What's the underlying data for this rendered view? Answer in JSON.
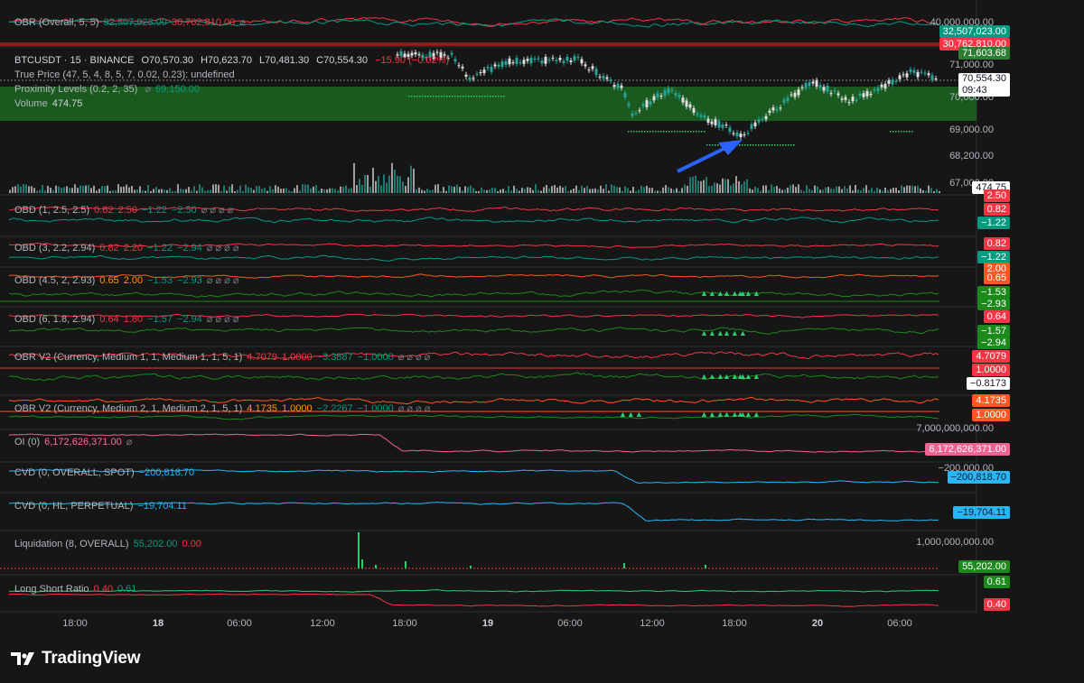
{
  "main": {
    "symbol_line": "BTCUSDT · 15 · BINANCE",
    "open": "O70,570.30",
    "high": "H70,623.70",
    "low": "L70,481.30",
    "close": "C70,554.30",
    "change": "−15.90 (−0.02%)",
    "true_price": "True Price (47, 5, 4, 8, 5, 7, 0.02, 0.23): undefined",
    "prox_label": "Proximity Levels (0.2, 2, 35)",
    "prox_value": "69,150.00",
    "volume_label": "Volume",
    "volume_value": "474.75",
    "last_price": "70,554.30",
    "countdown": "09:43",
    "upper_level_tag": "71,603.68",
    "axis": [
      "71,000.00",
      "70,000.00",
      "69,000.00",
      "68,200.00",
      "67,000.00"
    ]
  },
  "panes": {
    "obr_overall": {
      "label": "OBR (Overall, 5, 5)",
      "v1": "32,507,023.00",
      "v2": "30,762,810.00",
      "opts": "⌀",
      "axis": "40,000,000.00",
      "tag_up": "32,507,023.00",
      "tag_dn": "30,762,810.00"
    },
    "obd1": {
      "label": "OBD (1, 2.5, 2.5)",
      "v1": "0.82",
      "v2": "2.50",
      "v3": "−1.22",
      "v4": "−2.50",
      "opts": "⌀ ⌀ ⌀ ⌀",
      "tag_a": "2.50",
      "tag_r": "0.82",
      "tag_g": "−1.22"
    },
    "obd2": {
      "label": "OBD (3, 2.2, 2.94)",
      "v1": "0.82",
      "v2": "2.20",
      "v3": "−1.22",
      "v4": "−2.94",
      "opts": "⌀ ⌀ ⌀ ⌀",
      "tag_r": "0.82",
      "tag_g": "−1.22"
    },
    "obd3": {
      "label": "OBD (4.5, 2, 2.93)",
      "v1": "0.65",
      "v2": "2.00",
      "v3": "−1.53",
      "v4": "−2.93",
      "opts": "⌀ ⌀ ⌀ ⌀",
      "tag_a": "2.00",
      "tag_r": "0.65",
      "tag_g": "−1.53",
      "tag_b": "−2.93"
    },
    "obd4": {
      "label": "OBD (6, 1.8, 2.94)",
      "v1": "0.64",
      "v2": "1.80",
      "v3": "−1.57",
      "v4": "−2.94",
      "opts": "⌀ ⌀ ⌀ ⌀",
      "tag_r": "0.64",
      "tag_g": "−1.57",
      "tag_b": "−2.94"
    },
    "obr_v2a": {
      "label": "OBR V2 (Currency, Medium 1, 1, Medium 1, 1, 5, 1)",
      "v1": "4.7079",
      "v2": "1.0000",
      "v3": "−3.3887",
      "v4": "−1.0000",
      "opts": "⌀ ⌀ ⌀ ⌀",
      "tag_r": "4.7079",
      "tag_r2": "1.0000",
      "tag_w": "−0.8173"
    },
    "obr_v2b": {
      "label": "OBR V2 (Currency, Medium 2, 1, Medium 2, 1, 5, 1)",
      "v1": "4.1735",
      "v2": "1.0000",
      "v3": "−2.2267",
      "v4": "−1.0000",
      "opts": "⌀ ⌀ ⌀ ⌀",
      "tag_r": "4.1735",
      "tag_r2": "1.0000"
    },
    "oi": {
      "label": "OI (0)",
      "v1": "6,172,626,371.00",
      "opts": "⌀",
      "axis": "7,000,000,000.00",
      "tag": "6,172,626,371.00"
    },
    "cvd_spot": {
      "label": "CVD (0, OVERALL, SPOT)",
      "v1": "−200,818.70",
      "axis": "−200,000.00",
      "tag": "−200,818.70"
    },
    "cvd_perp": {
      "label": "CVD (0, HL, PERPETUAL)",
      "v1": "−19,704.11",
      "tag": "−19,704.11"
    },
    "liq": {
      "label": "Liquidation (8, OVERALL)",
      "v1": "55,202.00",
      "v2": "0.00",
      "axis": "1,000,000,000.00",
      "tag": "55,202.00"
    },
    "lsr": {
      "label": "Long Short Ratio",
      "v1": "0.40",
      "v2": "0.61",
      "tag_g": "0.61",
      "tag_r": "0.40"
    }
  },
  "time_axis": [
    "18:00",
    "18",
    "06:00",
    "12:00",
    "18:00",
    "19",
    "06:00",
    "12:00",
    "18:00",
    "20",
    "06:00"
  ],
  "brand": "TradingView",
  "colors": {
    "up": "#089981",
    "down": "#f23645",
    "accent": "#2962ff",
    "zone": "#1b5e20"
  }
}
